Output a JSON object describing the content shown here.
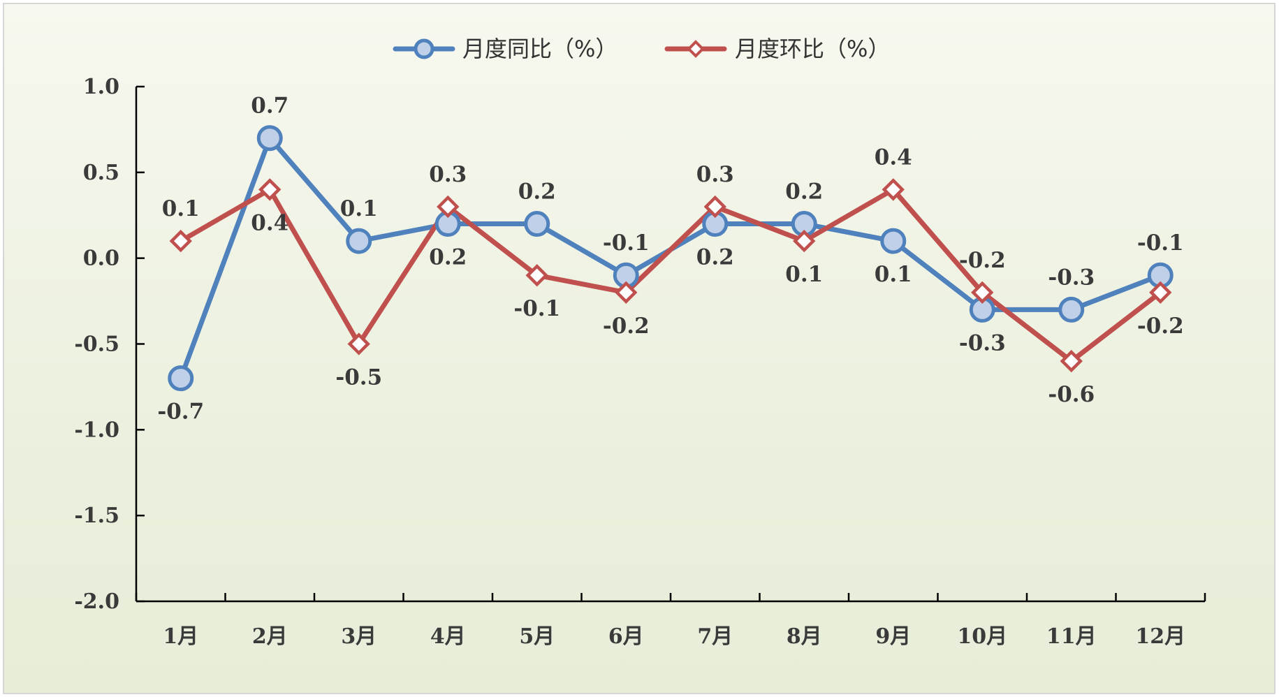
{
  "chart_data": {
    "type": "line",
    "categories": [
      "1月",
      "2月",
      "3月",
      "4月",
      "5月",
      "6月",
      "7月",
      "8月",
      "9月",
      "10月",
      "11月",
      "12月"
    ],
    "series": [
      {
        "name": "月度同比（%）",
        "values": [
          -0.7,
          0.7,
          0.1,
          0.2,
          0.2,
          -0.1,
          0.2,
          0.2,
          0.1,
          -0.3,
          -0.3,
          -0.1
        ],
        "labels": [
          "-0.7",
          "0.7",
          "0.1",
          "0.2",
          "0.2",
          "-0.1",
          "0.2",
          "0.2",
          "0.1",
          "-0.3",
          "-0.3",
          "-0.1"
        ],
        "color": "#4f81bd",
        "marker": "circle"
      },
      {
        "name": "月度环比（%）",
        "values": [
          0.1,
          0.4,
          -0.5,
          0.3,
          -0.1,
          -0.2,
          0.3,
          0.1,
          0.4,
          -0.2,
          -0.6,
          -0.2
        ],
        "labels": [
          "0.1",
          "0.4",
          "-0.5",
          "0.3",
          "-0.1",
          "-0.2",
          "0.3",
          "0.1",
          "0.4",
          "-0.2",
          "-0.6",
          "-0.2"
        ],
        "color": "#c0504d",
        "marker": "diamond"
      }
    ],
    "y_ticks": [
      "1.0",
      "0.5",
      "0.0",
      "-0.5",
      "-1.0",
      "-1.5",
      "-2.0"
    ],
    "ylim": [
      -2.0,
      1.0
    ],
    "xlabel": "",
    "ylabel": "",
    "title": "",
    "legend": "top-center",
    "grid": false
  }
}
